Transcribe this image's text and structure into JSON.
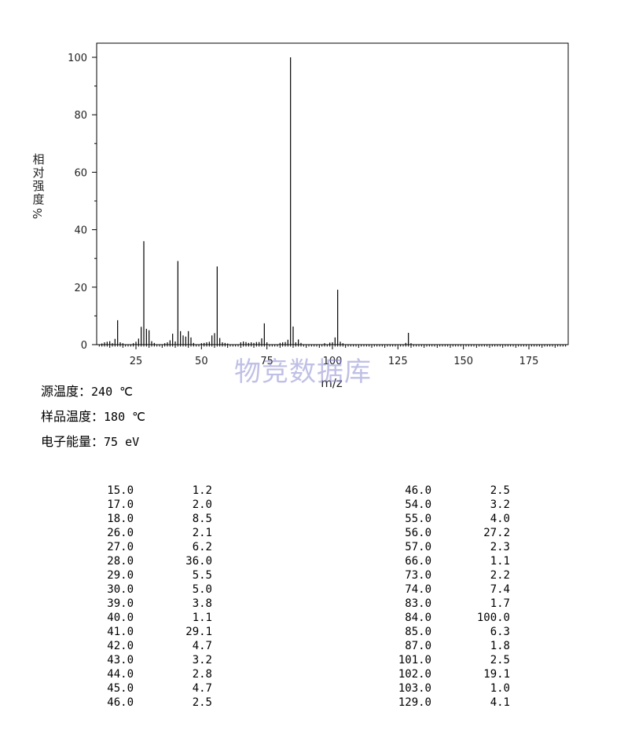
{
  "chart_data": {
    "type": "bar",
    "xlabel": "m/z",
    "ylabel": [
      "相",
      "对",
      "强",
      "度",
      "%"
    ],
    "xlim": [
      10,
      190
    ],
    "ylim": [
      0,
      100
    ],
    "xticks": [
      25,
      50,
      75,
      100,
      125,
      150,
      175
    ],
    "yticks": [
      0,
      20,
      40,
      60,
      80,
      100
    ],
    "peaks": [
      [
        12,
        0.4
      ],
      [
        13,
        0.8
      ],
      [
        14,
        1.0
      ],
      [
        15,
        1.2
      ],
      [
        16,
        0.5
      ],
      [
        17,
        2.0
      ],
      [
        18,
        8.5
      ],
      [
        19,
        0.8
      ],
      [
        20,
        0.5
      ],
      [
        24,
        0.5
      ],
      [
        25,
        1.0
      ],
      [
        26,
        2.1
      ],
      [
        27,
        6.2
      ],
      [
        28,
        36.0
      ],
      [
        29,
        5.5
      ],
      [
        30,
        5.0
      ],
      [
        31,
        1.2
      ],
      [
        32,
        0.6
      ],
      [
        36,
        0.5
      ],
      [
        37,
        0.8
      ],
      [
        38,
        1.5
      ],
      [
        39,
        3.8
      ],
      [
        40,
        1.1
      ],
      [
        41,
        29.1
      ],
      [
        42,
        4.7
      ],
      [
        43,
        3.2
      ],
      [
        44,
        2.8
      ],
      [
        45,
        4.7
      ],
      [
        46,
        2.5
      ],
      [
        47,
        0.6
      ],
      [
        50,
        0.5
      ],
      [
        51,
        0.6
      ],
      [
        52,
        0.8
      ],
      [
        53,
        1.0
      ],
      [
        54,
        3.2
      ],
      [
        55,
        4.0
      ],
      [
        56,
        27.2
      ],
      [
        57,
        2.3
      ],
      [
        58,
        0.8
      ],
      [
        59,
        0.6
      ],
      [
        60,
        0.4
      ],
      [
        65,
        0.8
      ],
      [
        66,
        1.1
      ],
      [
        67,
        0.9
      ],
      [
        68,
        0.6
      ],
      [
        69,
        0.8
      ],
      [
        70,
        0.6
      ],
      [
        71,
        0.9
      ],
      [
        72,
        0.9
      ],
      [
        73,
        2.2
      ],
      [
        74,
        7.4
      ],
      [
        75,
        0.8
      ],
      [
        80,
        0.6
      ],
      [
        81,
        0.8
      ],
      [
        82,
        0.9
      ],
      [
        83,
        1.7
      ],
      [
        84,
        100.0
      ],
      [
        85,
        6.3
      ],
      [
        86,
        0.8
      ],
      [
        87,
        1.8
      ],
      [
        88,
        0.6
      ],
      [
        97,
        0.5
      ],
      [
        99,
        0.7
      ],
      [
        100,
        0.8
      ],
      [
        101,
        2.5
      ],
      [
        102,
        19.1
      ],
      [
        103,
        1.0
      ],
      [
        104,
        0.5
      ],
      [
        128,
        0.6
      ],
      [
        129,
        4.1
      ],
      [
        130,
        0.5
      ]
    ]
  },
  "watermark": "物竞数据库",
  "conditions": [
    {
      "label": "源温度：",
      "value": "240 ℃"
    },
    {
      "label": "样品温度：",
      "value": "180 ℃"
    },
    {
      "label": "电子能量：",
      "value": "75 eV"
    }
  ],
  "table_left": [
    [
      "15.0",
      "1.2"
    ],
    [
      "17.0",
      "2.0"
    ],
    [
      "18.0",
      "8.5"
    ],
    [
      "26.0",
      "2.1"
    ],
    [
      "27.0",
      "6.2"
    ],
    [
      "28.0",
      "36.0"
    ],
    [
      "29.0",
      "5.5"
    ],
    [
      "30.0",
      "5.0"
    ],
    [
      "39.0",
      "3.8"
    ],
    [
      "40.0",
      "1.1"
    ],
    [
      "41.0",
      "29.1"
    ],
    [
      "42.0",
      "4.7"
    ],
    [
      "43.0",
      "3.2"
    ],
    [
      "44.0",
      "2.8"
    ],
    [
      "45.0",
      "4.7"
    ],
    [
      "46.0",
      "2.5"
    ]
  ],
  "table_right": [
    [
      "46.0",
      "2.5"
    ],
    [
      "54.0",
      "3.2"
    ],
    [
      "55.0",
      "4.0"
    ],
    [
      "56.0",
      "27.2"
    ],
    [
      "57.0",
      "2.3"
    ],
    [
      "66.0",
      "1.1"
    ],
    [
      "73.0",
      "2.2"
    ],
    [
      "74.0",
      "7.4"
    ],
    [
      "83.0",
      "1.7"
    ],
    [
      "84.0",
      "100.0"
    ],
    [
      "85.0",
      "6.3"
    ],
    [
      "87.0",
      "1.8"
    ],
    [
      "101.0",
      "2.5"
    ],
    [
      "102.0",
      "19.1"
    ],
    [
      "103.0",
      "1.0"
    ],
    [
      "129.0",
      "4.1"
    ]
  ]
}
